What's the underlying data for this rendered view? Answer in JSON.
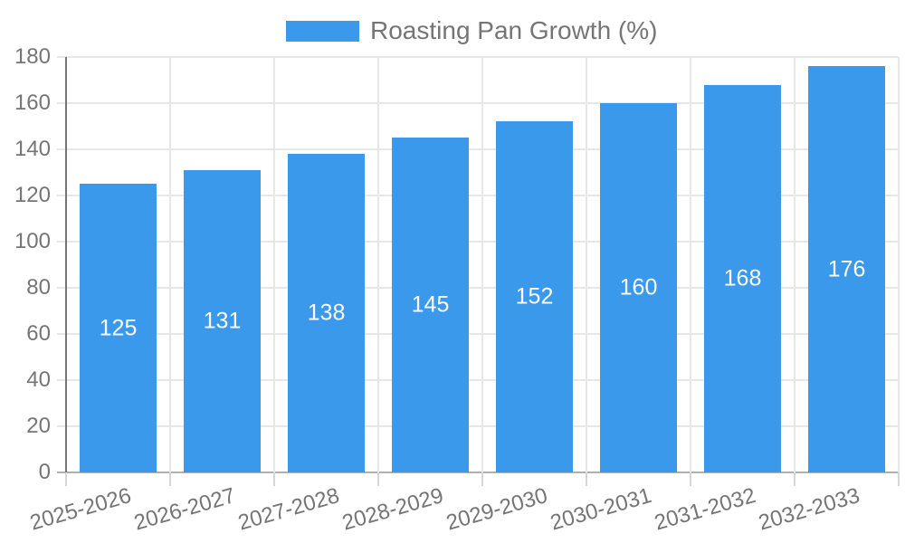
{
  "chart_data": {
    "type": "bar",
    "title": "",
    "legend": {
      "label": "Roasting Pan Growth (%)",
      "position": "top"
    },
    "categories": [
      "2025-2026",
      "2026-2027",
      "2027-2028",
      "2028-2029",
      "2029-2030",
      "2030-2031",
      "2031-2032",
      "2032-2033"
    ],
    "series": [
      {
        "name": "Roasting Pan Growth (%)",
        "values": [
          125,
          131,
          138,
          145,
          152,
          160,
          168,
          176
        ]
      }
    ],
    "value_labels_shown": true,
    "xlabel": "",
    "ylabel": "",
    "ylim": [
      0,
      180
    ],
    "ytick_step": 20,
    "ytick_labels": [
      "0",
      "20",
      "40",
      "60",
      "80",
      "100",
      "120",
      "140",
      "160",
      "180"
    ],
    "grid": true,
    "colors": {
      "bar": "#3B99EC",
      "grid_line": "#E7E7E7",
      "baseline": "#B0B0B0",
      "axis_line": "#757575",
      "x_tick": "#D6D6D6",
      "axis_text": "#757575",
      "value_label_text": "#FFFFFF",
      "background": "#FFFFFF"
    }
  }
}
